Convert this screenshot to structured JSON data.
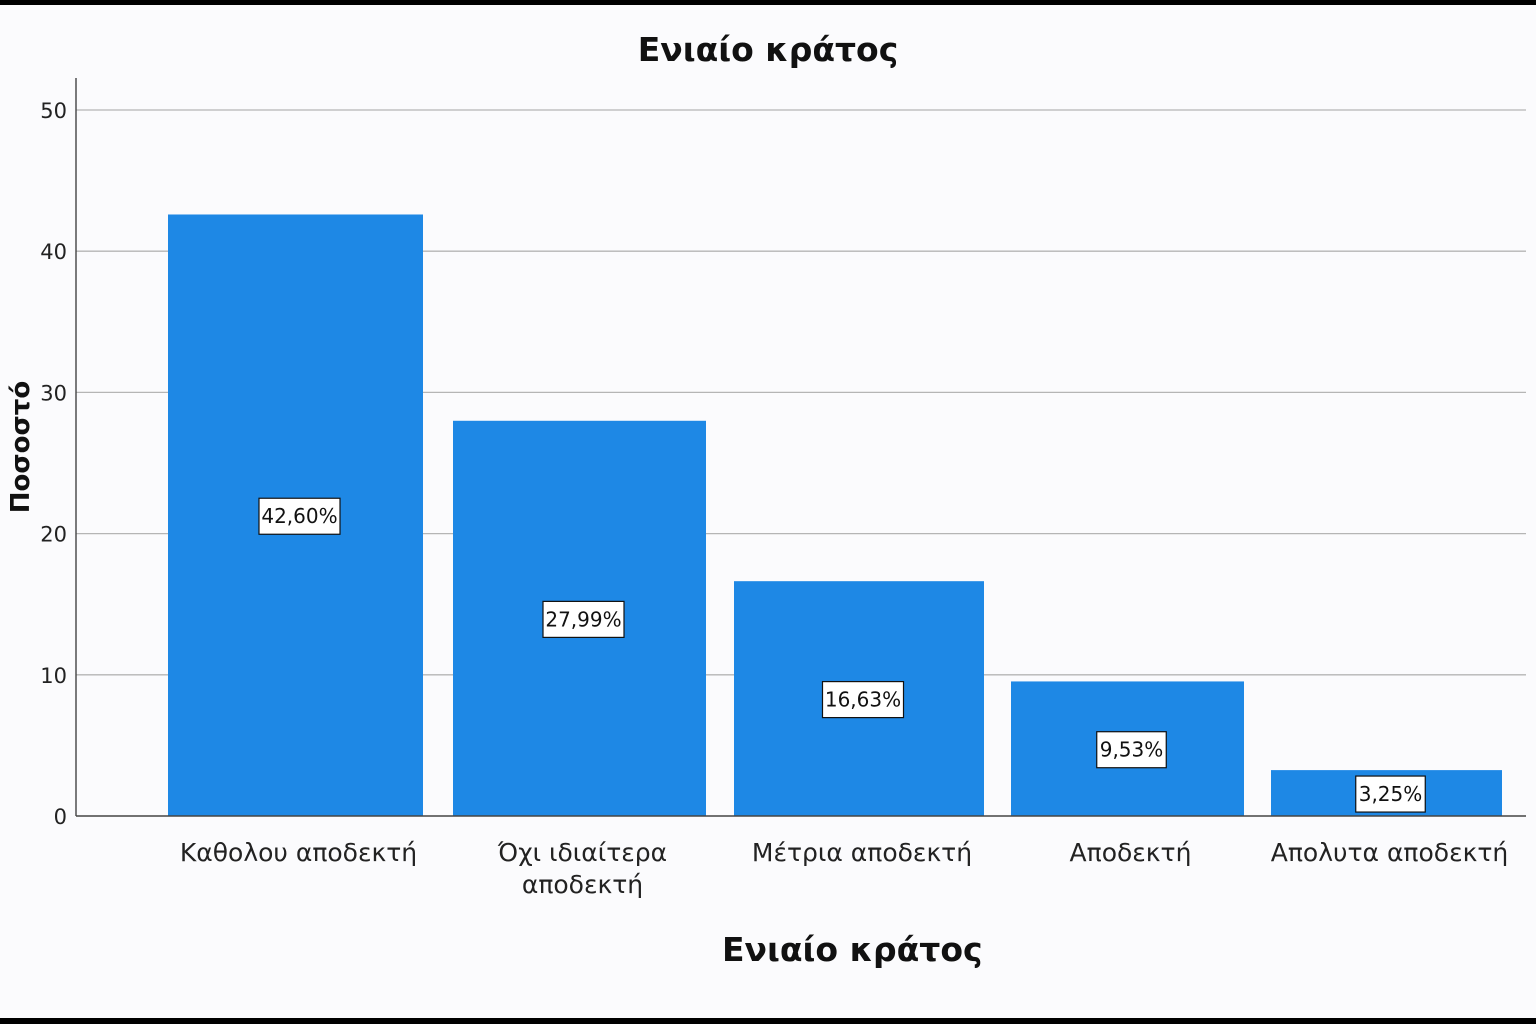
{
  "chart_data": {
    "type": "bar",
    "title": "Ενιαίο κράτος",
    "xlabel": "Ενιαίο κράτος",
    "ylabel": "Ποσοστό",
    "categories": [
      [
        "Καθολου αποδεκτή"
      ],
      [
        "Όχι ιδιαίτερα",
        "αποδεκτή"
      ],
      [
        "Μέτρια αποδεκτή"
      ],
      [
        "Αποδεκτή"
      ],
      [
        "Απολυτα αποδεκτή"
      ]
    ],
    "values": [
      42.6,
      27.99,
      16.63,
      9.53,
      3.25
    ],
    "data_labels": [
      "42,60%",
      "27,99%",
      "16,63%",
      "9,53%",
      "3,25%"
    ],
    "ylim": [
      0,
      50
    ],
    "yticks": [
      0,
      10,
      20,
      30,
      40,
      50
    ],
    "grid": true,
    "bar_color": "#1e88e5",
    "grid_color": "#b5b5b5"
  }
}
